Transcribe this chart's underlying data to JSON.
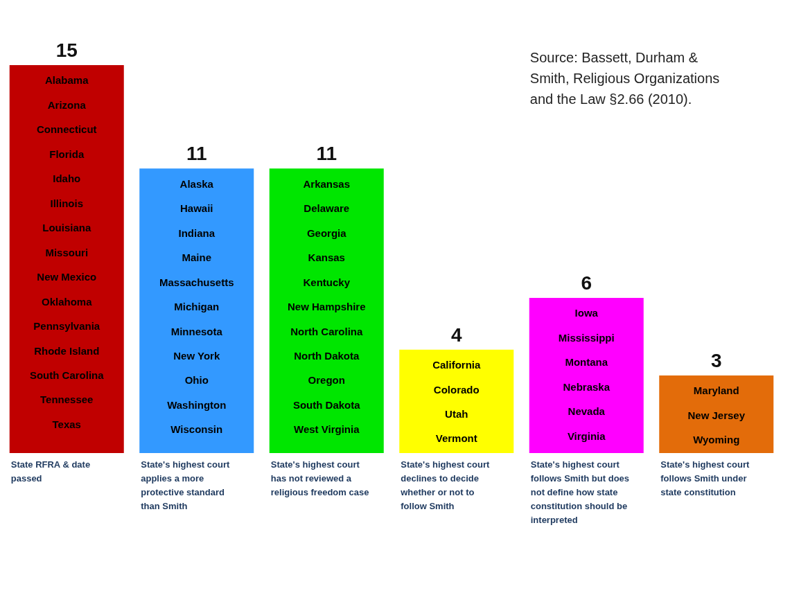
{
  "chart_data": {
    "type": "bar",
    "categories": [
      "State RFRA & date passed",
      "State's highest court applies a more protective standard than Smith",
      "State's highest court has not reviewed a religious freedom case",
      "State's highest court declines to decide whether or not to follow Smith",
      "State's highest court follows Smith but does not define how state constitution should be interpreted",
      "State's highest court follows Smith under state constitution"
    ],
    "values": [
      15,
      11,
      11,
      4,
      6,
      3
    ],
    "colors": [
      "#c00000",
      "#3399ff",
      "#00e600",
      "#ffff00",
      "#ff00ff",
      "#e36c0a"
    ],
    "data_labels": true,
    "annotations": [
      "Source:  Bassett, Durham & Smith, Religious Organizations and the Law §2.66 (2010).",
      "Alabama",
      "Arizona",
      "Connecticut",
      "Florida",
      "Idaho",
      "Illinois",
      "Louisiana",
      "Missouri",
      "New Mexico",
      "Oklahoma",
      "Pennsylvania",
      "Rhode Island",
      "South Carolina",
      "Tennessee",
      "Texas",
      "Alaska",
      "Hawaii",
      "Indiana",
      "Maine",
      "Massachusetts",
      "Michigan",
      "Minnesota",
      "New York",
      "Ohio",
      "Washington",
      "Wisconsin",
      "Arkansas",
      "Delaware",
      "Georgia",
      "Kansas",
      "Kentucky",
      "New Hampshire",
      "North Carolina",
      "North Dakota",
      "Oregon",
      "South Dakota",
      "West Virginia",
      "California",
      "Colorado",
      "Utah",
      "Vermont",
      "Iowa",
      "Mississippi",
      "Montana",
      "Nebraska",
      "Nevada",
      "Virginia",
      "Maryland",
      "New Jersey",
      "Wyoming"
    ]
  }
}
